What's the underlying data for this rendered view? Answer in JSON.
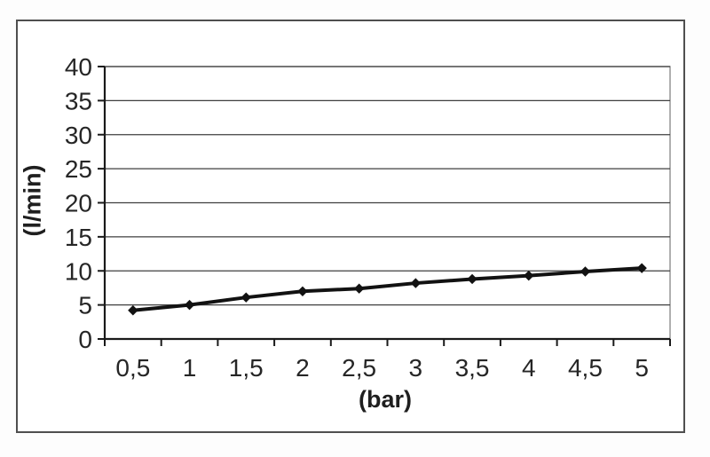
{
  "figure": {
    "background": "#ffffff",
    "border_color": "#4f4f4f"
  },
  "chart_data": {
    "type": "line",
    "title": "",
    "categories": [
      "0,5",
      "1",
      "1,5",
      "2",
      "2,5",
      "3",
      "3,5",
      "4",
      "4,5",
      "5"
    ],
    "x_numeric": [
      0.5,
      1,
      1.5,
      2,
      2.5,
      3,
      3.5,
      4,
      4.5,
      5
    ],
    "values": [
      4.2,
      5.0,
      6.1,
      7.0,
      7.4,
      8.2,
      8.8,
      9.3,
      9.9,
      10.4
    ],
    "xlabel": "(bar)",
    "ylabel": "(l/min)",
    "ylim": [
      0,
      40
    ],
    "y_ticks": [
      0,
      5,
      10,
      15,
      20,
      25,
      30,
      35,
      40
    ],
    "grid": "horizontal",
    "legend": "none",
    "marker": "diamond",
    "colors": {
      "line": "#121212",
      "marker": "#121212",
      "grid": "#3f3f3f",
      "axis": "#1a1a1a",
      "text": "#262626",
      "plot_border": "#8f8f8f"
    }
  }
}
